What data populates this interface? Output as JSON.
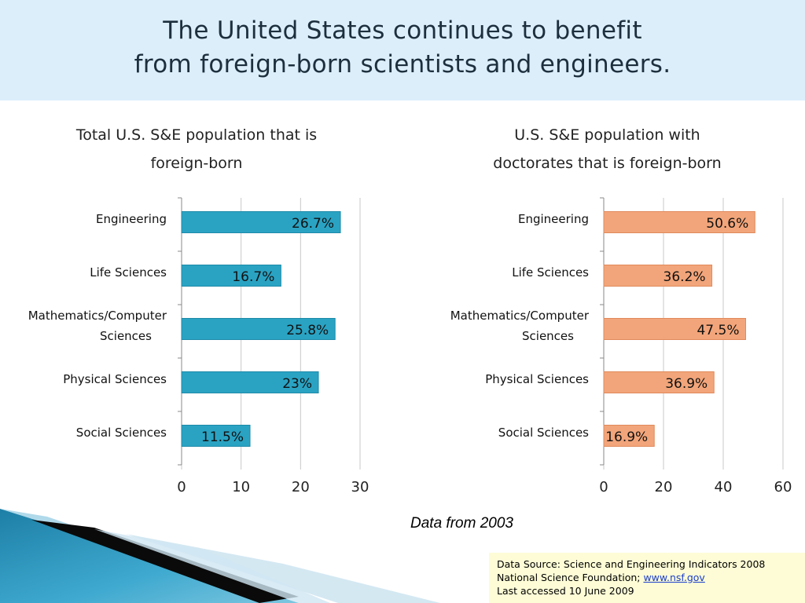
{
  "slide": {
    "title_line1": "The United States continues to benefit",
    "title_line2": "from foreign-born scientists and engineers.",
    "data_note": "Data from 2003",
    "source_line1": "Data Source:  Science and Engineering Indicators 2008",
    "source_line2_prefix": "National Science Foundation; ",
    "source_link": "www.nsf.gov",
    "source_line3": "Last accessed 10 June 2009"
  },
  "chart_data": [
    {
      "type": "bar",
      "orientation": "horizontal",
      "title_line1": "Total U.S. S&E population that is",
      "title_line2": "foreign-born",
      "categories": [
        "Engineering",
        "Life Sciences",
        "Mathematics/Computer Sciences",
        "Physical Sciences",
        "Social Sciences"
      ],
      "category_lines": [
        [
          "Engineering"
        ],
        [
          "Life Sciences"
        ],
        [
          "Mathematics/Computer",
          "Sciences"
        ],
        [
          "Physical Sciences"
        ],
        [
          "Social Sciences"
        ]
      ],
      "values": [
        26.7,
        16.7,
        25.8,
        23,
        11.5
      ],
      "data_labels": [
        "26.7%",
        "16.7%",
        "25.8%",
        "23%",
        "11.5%"
      ],
      "xlim": [
        0,
        30
      ],
      "xticks": [
        0,
        10,
        20,
        30
      ],
      "grid": true,
      "color": "#2aa3c3",
      "color_edge": "#1e8aa8"
    },
    {
      "type": "bar",
      "orientation": "horizontal",
      "title_line1": "U.S. S&E population with",
      "title_line2": "doctorates that is foreign-born",
      "categories": [
        "Engineering",
        "Life Sciences",
        "Mathematics/Computer Sciences",
        "Physical Sciences",
        "Social Sciences"
      ],
      "category_lines": [
        [
          "Engineering"
        ],
        [
          "Life Sciences"
        ],
        [
          "Mathematics/Computer",
          "Sciences"
        ],
        [
          "Physical Sciences"
        ],
        [
          "Social Sciences"
        ]
      ],
      "values": [
        50.6,
        36.2,
        47.5,
        36.9,
        16.9
      ],
      "data_labels": [
        "50.6%",
        "36.2%",
        "47.5%",
        "36.9%",
        "16.9%"
      ],
      "xlim": [
        0,
        60
      ],
      "xticks": [
        0,
        20,
        40,
        60
      ],
      "grid": true,
      "color": "#f2a57a",
      "color_edge": "#e08a5c"
    }
  ]
}
